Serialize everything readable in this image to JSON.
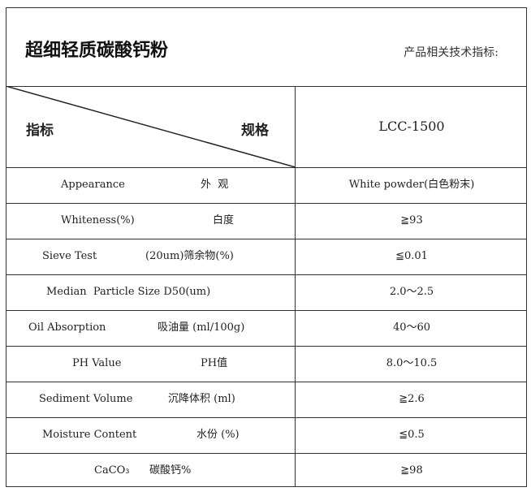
{
  "title": "超细轻质碳酸钙粉",
  "subtitle": "产品相关技术指标:",
  "header": {
    "left": "指标",
    "right": "规格",
    "spec": "LCC-1500"
  },
  "rows": [
    {
      "en": "Appearance",
      "cn": "外  观",
      "value": "White powder(白色粉末)"
    },
    {
      "en": "Whiteness(%)",
      "cn": "白度",
      "value": "≧93"
    },
    {
      "en": "Sieve Test",
      "cn": "(20um)筛余物(%)",
      "value": "≦0.01"
    },
    {
      "en": "Median  Particle Size D50(um)",
      "cn": "",
      "value": "2.0～2.5"
    },
    {
      "en": "Oil Absorption",
      "cn": "吸油量 (ml/100g)",
      "value": "40～60"
    },
    {
      "en": "PH Value",
      "cn": "PH值",
      "value": "8.0～10.5"
    },
    {
      "en": "Sediment Volume",
      "cn": "沉降体积 (ml)",
      "value": "≧2.6"
    },
    {
      "en": "Moisture Content",
      "cn": "水份 (%)",
      "value": "≦0.5"
    },
    {
      "en": "CaCO₃",
      "cn": "碳酸钙%",
      "value": "≧98"
    }
  ]
}
